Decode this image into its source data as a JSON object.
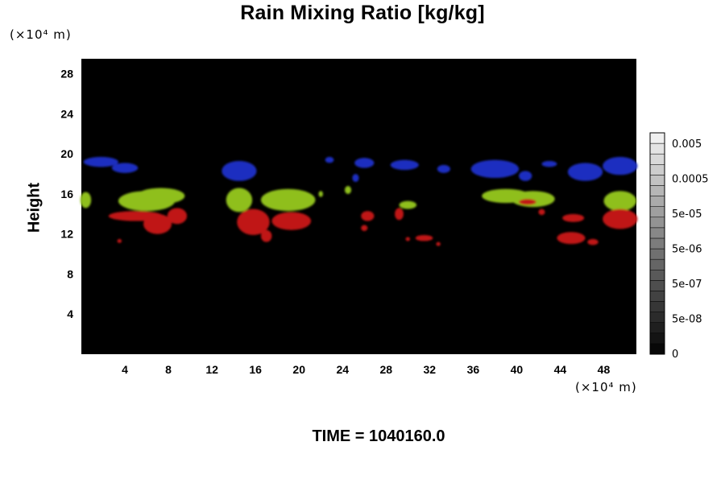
{
  "chart_data": {
    "type": "heatmap",
    "title": "Rain Mixing Ratio [kg/kg]",
    "ylabel": "Height",
    "xlabel": "",
    "x_unit": "(×10⁴ m)",
    "y_unit": "(×10⁴ m)",
    "xlim": [
      0,
      51
    ],
    "ylim": [
      0,
      29.5
    ],
    "x_ticks": [
      4,
      8,
      12,
      16,
      20,
      24,
      28,
      32,
      36,
      40,
      44,
      48
    ],
    "y_ticks": [
      4,
      8,
      12,
      16,
      20,
      24,
      28
    ],
    "grid": false,
    "background": "#000000",
    "colorbar": {
      "position": "right",
      "labels": [
        "0",
        "5e-08",
        "5e-07",
        "5e-06",
        "5e-05",
        "0.0005",
        "0.005"
      ],
      "n_levels": 21
    },
    "regions": [
      {
        "color": "#1f2fc0",
        "cx": 1.8,
        "cy": 19.2,
        "rx": 1.6,
        "ry": 0.5
      },
      {
        "color": "#1f2fc0",
        "cx": 4.0,
        "cy": 18.6,
        "rx": 1.2,
        "ry": 0.5
      },
      {
        "color": "#1f2fc0",
        "cx": 14.5,
        "cy": 18.3,
        "rx": 1.6,
        "ry": 1.0
      },
      {
        "color": "#1f2fc0",
        "cx": 22.8,
        "cy": 19.4,
        "rx": 0.4,
        "ry": 0.3
      },
      {
        "color": "#1f2fc0",
        "cx": 26.0,
        "cy": 19.1,
        "rx": 0.9,
        "ry": 0.5
      },
      {
        "color": "#1f2fc0",
        "cx": 25.2,
        "cy": 17.6,
        "rx": 0.3,
        "ry": 0.4
      },
      {
        "color": "#1f2fc0",
        "cx": 29.7,
        "cy": 18.9,
        "rx": 1.3,
        "ry": 0.5
      },
      {
        "color": "#1f2fc0",
        "cx": 33.3,
        "cy": 18.5,
        "rx": 0.6,
        "ry": 0.4
      },
      {
        "color": "#1f2fc0",
        "cx": 38.0,
        "cy": 18.5,
        "rx": 2.2,
        "ry": 0.9
      },
      {
        "color": "#1f2fc0",
        "cx": 40.8,
        "cy": 17.8,
        "rx": 0.6,
        "ry": 0.5
      },
      {
        "color": "#1f2fc0",
        "cx": 43.0,
        "cy": 19.0,
        "rx": 0.7,
        "ry": 0.3
      },
      {
        "color": "#1f2fc0",
        "cx": 46.3,
        "cy": 18.2,
        "rx": 1.6,
        "ry": 0.9
      },
      {
        "color": "#1f2fc0",
        "cx": 49.5,
        "cy": 18.8,
        "rx": 1.6,
        "ry": 0.9
      },
      {
        "color": "#8fbf1f",
        "cx": 0.4,
        "cy": 15.4,
        "rx": 0.5,
        "ry": 0.8
      },
      {
        "color": "#8fbf1f",
        "cx": 6.0,
        "cy": 15.3,
        "rx": 2.6,
        "ry": 1.0
      },
      {
        "color": "#8fbf1f",
        "cx": 7.3,
        "cy": 15.8,
        "rx": 2.2,
        "ry": 0.8
      },
      {
        "color": "#8fbf1f",
        "cx": 14.5,
        "cy": 15.4,
        "rx": 1.2,
        "ry": 1.2
      },
      {
        "color": "#8fbf1f",
        "cx": 19.0,
        "cy": 15.4,
        "rx": 2.5,
        "ry": 1.1
      },
      {
        "color": "#8fbf1f",
        "cx": 22.0,
        "cy": 16.0,
        "rx": 0.2,
        "ry": 0.3
      },
      {
        "color": "#8fbf1f",
        "cx": 24.5,
        "cy": 16.4,
        "rx": 0.3,
        "ry": 0.4
      },
      {
        "color": "#8fbf1f",
        "cx": 30.0,
        "cy": 14.9,
        "rx": 0.8,
        "ry": 0.4
      },
      {
        "color": "#8fbf1f",
        "cx": 39.0,
        "cy": 15.8,
        "rx": 2.2,
        "ry": 0.7
      },
      {
        "color": "#8fbf1f",
        "cx": 41.5,
        "cy": 15.5,
        "rx": 2.0,
        "ry": 0.8
      },
      {
        "color": "#8fbf1f",
        "cx": 49.5,
        "cy": 15.3,
        "rx": 1.5,
        "ry": 1.0
      },
      {
        "color": "#c01414",
        "cx": 5.0,
        "cy": 13.8,
        "rx": 2.5,
        "ry": 0.5
      },
      {
        "color": "#c01414",
        "cx": 7.0,
        "cy": 13.0,
        "rx": 1.3,
        "ry": 1.0
      },
      {
        "color": "#c01414",
        "cx": 8.8,
        "cy": 13.8,
        "rx": 0.9,
        "ry": 0.8
      },
      {
        "color": "#c01414",
        "cx": 3.5,
        "cy": 11.3,
        "rx": 0.2,
        "ry": 0.2
      },
      {
        "color": "#c01414",
        "cx": 15.8,
        "cy": 13.2,
        "rx": 1.5,
        "ry": 1.3
      },
      {
        "color": "#c01414",
        "cx": 17.0,
        "cy": 11.8,
        "rx": 0.5,
        "ry": 0.6
      },
      {
        "color": "#c01414",
        "cx": 19.3,
        "cy": 13.3,
        "rx": 1.8,
        "ry": 0.9
      },
      {
        "color": "#c01414",
        "cx": 26.3,
        "cy": 13.8,
        "rx": 0.6,
        "ry": 0.5
      },
      {
        "color": "#c01414",
        "cx": 26.0,
        "cy": 12.6,
        "rx": 0.3,
        "ry": 0.3
      },
      {
        "color": "#c01414",
        "cx": 29.2,
        "cy": 14.0,
        "rx": 0.4,
        "ry": 0.6
      },
      {
        "color": "#c01414",
        "cx": 31.5,
        "cy": 11.6,
        "rx": 0.8,
        "ry": 0.3
      },
      {
        "color": "#c01414",
        "cx": 30.0,
        "cy": 11.5,
        "rx": 0.2,
        "ry": 0.2
      },
      {
        "color": "#c01414",
        "cx": 32.8,
        "cy": 11.0,
        "rx": 0.2,
        "ry": 0.2
      },
      {
        "color": "#c01414",
        "cx": 41.0,
        "cy": 15.2,
        "rx": 0.8,
        "ry": 0.3
      },
      {
        "color": "#c01414",
        "cx": 42.3,
        "cy": 14.2,
        "rx": 0.3,
        "ry": 0.3
      },
      {
        "color": "#c01414",
        "cx": 45.2,
        "cy": 13.6,
        "rx": 1.0,
        "ry": 0.4
      },
      {
        "color": "#c01414",
        "cx": 45.0,
        "cy": 11.6,
        "rx": 1.3,
        "ry": 0.6
      },
      {
        "color": "#c01414",
        "cx": 47.0,
        "cy": 11.2,
        "rx": 0.5,
        "ry": 0.3
      },
      {
        "color": "#c01414",
        "cx": 49.5,
        "cy": 13.5,
        "rx": 1.6,
        "ry": 1.0
      }
    ]
  },
  "footer": {
    "time_label": "TIME = 1040160.0"
  }
}
